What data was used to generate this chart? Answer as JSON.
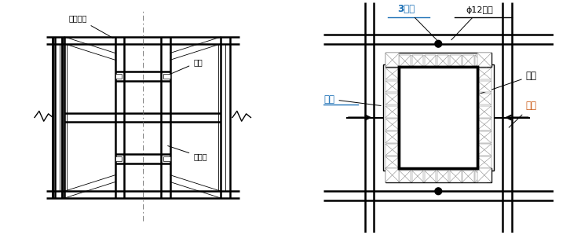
{
  "bg_color": "#ffffff",
  "lc": "#000000",
  "text_black": "#000000",
  "text_blue": "#1a6fb5",
  "text_orange": "#c8520a",
  "lw_thick": 1.8,
  "lw_med": 1.0,
  "lw_thin": 0.6,
  "labels": {
    "manzhi": "满堂支架",
    "zhugu": "柱箍",
    "zhumuban": "柱模板",
    "san_xing": "3型卡",
    "luogan": "ϕ12螺杆",
    "mufang": "木枋",
    "muban": "模板",
    "gangguan": "钢管"
  }
}
